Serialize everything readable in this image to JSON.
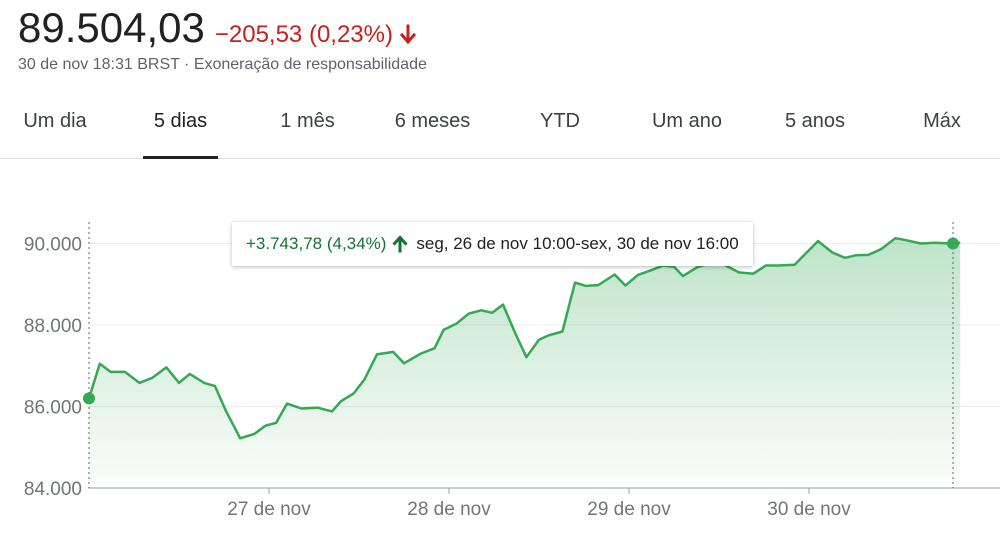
{
  "quote": {
    "price": "89.504,03",
    "change": "−205,53 (0,23%)",
    "change_direction_icon": "arrow-down-icon",
    "down_color": "#c5221f",
    "up_color": "#137333",
    "timestamp": "30 de nov 18:31 BRST",
    "separator": " · ",
    "disclaimer": "Exoneração de responsabilidade"
  },
  "tabs": [
    {
      "label": "Um dia",
      "active": false
    },
    {
      "label": "5 dias",
      "active": true
    },
    {
      "label": "1 mês",
      "active": false
    },
    {
      "label": "6 meses",
      "active": false
    },
    {
      "label": "YTD",
      "active": false
    },
    {
      "label": "Um ano",
      "active": false
    },
    {
      "label": "5 anos",
      "active": false
    },
    {
      "label": "Máx",
      "active": false
    }
  ],
  "tooltip": {
    "change": "+3.743,78 (4,34%)",
    "icon": "arrow-up-icon",
    "range": "seg, 26 de nov 10:00-sex, 30 de nov 16:00"
  },
  "chart_data": {
    "type": "area",
    "title": "",
    "xlabel": "",
    "ylabel": "",
    "line_color": "#34a853",
    "fill_color": "#34a853",
    "grid": true,
    "ylim": [
      84000,
      91000
    ],
    "y_ticks": [
      84000,
      86000,
      88000,
      90000
    ],
    "y_tick_labels": [
      "84.000",
      "86.000",
      "88.000",
      "90.000"
    ],
    "x_ticks": [
      1,
      2,
      3,
      4
    ],
    "x_tick_labels": [
      "27 de nov",
      "28 de nov",
      "29 de nov",
      "30 de nov"
    ],
    "xlim": [
      0,
      4.8
    ],
    "start_marker_value": 86200,
    "end_marker_value": 90000,
    "series": [
      {
        "x": [
          0.0,
          0.06,
          0.12,
          0.2,
          0.28,
          0.35,
          0.43,
          0.5,
          0.56,
          0.64,
          0.7,
          0.76,
          0.84,
          0.92,
          0.98,
          1.04,
          1.1,
          1.18,
          1.27,
          1.35,
          1.4,
          1.47,
          1.53,
          1.6,
          1.69,
          1.75,
          1.84,
          1.92,
          1.97,
          2.04,
          2.11,
          2.18,
          2.24,
          2.3,
          2.37,
          2.43,
          2.5,
          2.55,
          2.63,
          2.7,
          2.76,
          2.83,
          2.92,
          2.98,
          3.05,
          3.12,
          3.19,
          3.25,
          3.3,
          3.38,
          3.45,
          3.52,
          3.61,
          3.69,
          3.76,
          3.83,
          3.92,
          3.98,
          4.05,
          4.13,
          4.2,
          4.26,
          4.33,
          4.4,
          4.48,
          4.54,
          4.62,
          4.7,
          4.79,
          4.84
        ],
        "values": [
          86200,
          87050,
          86850,
          86850,
          86580,
          86700,
          86960,
          86580,
          86800,
          86580,
          86500,
          85900,
          85220,
          85330,
          85530,
          85600,
          86070,
          85950,
          85970,
          85880,
          86130,
          86320,
          86660,
          87280,
          87340,
          87060,
          87290,
          87430,
          87880,
          88030,
          88280,
          88360,
          88300,
          88500,
          87780,
          87210,
          87640,
          87740,
          87840,
          89040,
          88960,
          88980,
          89240,
          88970,
          89230,
          89340,
          89460,
          89430,
          89200,
          89420,
          89510,
          89500,
          89290,
          89260,
          89460,
          89460,
          89480,
          89750,
          90060,
          89780,
          89650,
          89710,
          89720,
          89860,
          90130,
          90080,
          90000,
          90020,
          90000,
          90020
        ]
      }
    ]
  }
}
